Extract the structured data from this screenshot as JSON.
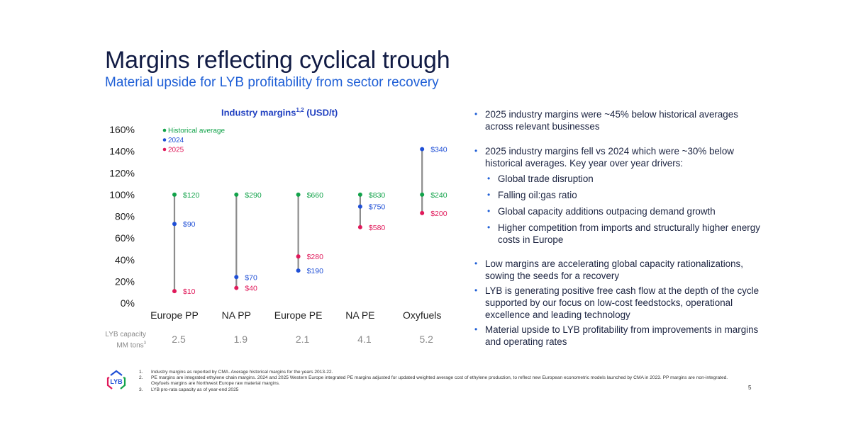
{
  "slide": {
    "title": "Margins reflecting cyclical trough",
    "subtitle": "Material upside for LYB profitability from sector recovery",
    "page_number": "5"
  },
  "chart_data": {
    "type": "scatter",
    "title": "Industry margins",
    "title_superscript": "1,2",
    "title_suffix": "(USD/t)",
    "xlabel": "",
    "ylabel": "",
    "ylim": [
      0,
      160
    ],
    "yticks": [
      0,
      20,
      40,
      60,
      80,
      100,
      120,
      140,
      160
    ],
    "ytick_labels": [
      "0%",
      "20%",
      "40%",
      "60%",
      "80%",
      "100%",
      "120%",
      "140%",
      "160%"
    ],
    "grid": false,
    "legend_placement": "top-left",
    "categories": [
      "Europe PP",
      "NA PP",
      "Europe PE",
      "NA PE",
      "Oxyfuels"
    ],
    "series": [
      {
        "name": "Historical average",
        "color": "#12a34a",
        "values_pct": [
          100,
          100,
          100,
          100,
          100
        ],
        "labels": [
          "$120",
          "$290",
          "$660",
          "$830",
          "$240"
        ]
      },
      {
        "name": "2024",
        "color": "#1f4fd6",
        "values_pct": [
          73,
          24,
          30,
          89,
          142
        ],
        "labels": [
          "$90",
          "$70",
          "$190",
          "$750",
          "$340"
        ]
      },
      {
        "name": "2025",
        "color": "#e0195a",
        "values_pct": [
          11,
          14,
          43,
          70,
          83
        ],
        "labels": [
          "$10",
          "$40",
          "$280",
          "$580",
          "$200"
        ]
      }
    ],
    "capacity": {
      "label_line1": "LYB capacity",
      "label_line2": "MM tons",
      "label_superscript": "3",
      "values": [
        "2.5",
        "1.9",
        "2.1",
        "4.1",
        "5.2"
      ]
    }
  },
  "bullets": [
    {
      "text": "2025 industry margins were ~45% below historical averages across relevant businesses",
      "sub": []
    },
    {
      "text": "2025 industry margins fell vs 2024 which were ~30% below historical averages. Key year over year drivers:",
      "sub": [
        "Global trade disruption",
        "Falling oil:gas ratio",
        "Global capacity additions outpacing demand growth",
        "Higher competition from imports and structurally higher energy costs in Europe"
      ]
    },
    {
      "text": "Low margins are accelerating global capacity rationalizations, sowing the seeds for a recovery",
      "sub": []
    },
    {
      "text": "LYB is generating positive free cash flow at the depth of the cycle supported by our focus on low-cost feedstocks, operational excellence and leading technology",
      "sub": []
    },
    {
      "text": "Material upside to LYB profitability from improvements in margins and operating rates",
      "sub": []
    }
  ],
  "bullet_marker": "•",
  "footnotes": [
    {
      "num": "1.",
      "text": "Industry margins as reported by CMA. Average historical margins for the years 2013-22."
    },
    {
      "num": "2.",
      "text": "PE margins are integrated ethylene chain margins. 2024 and 2025 Western Europe integrated PE margins adjusted for updated weighted average cost of ethylene production, to reflect new European econometric models launched by CMA in 2023.  PP margins are non-integrated.  Oxyfuels margins are Northwest Europe raw material margins."
    },
    {
      "num": "3.",
      "text": "LYB pro-rata capacity as of year-end 2025"
    }
  ],
  "logo": {
    "text": "LYB",
    "colors": [
      "#1f4fd6",
      "#e0195a",
      "#12a34a"
    ]
  }
}
